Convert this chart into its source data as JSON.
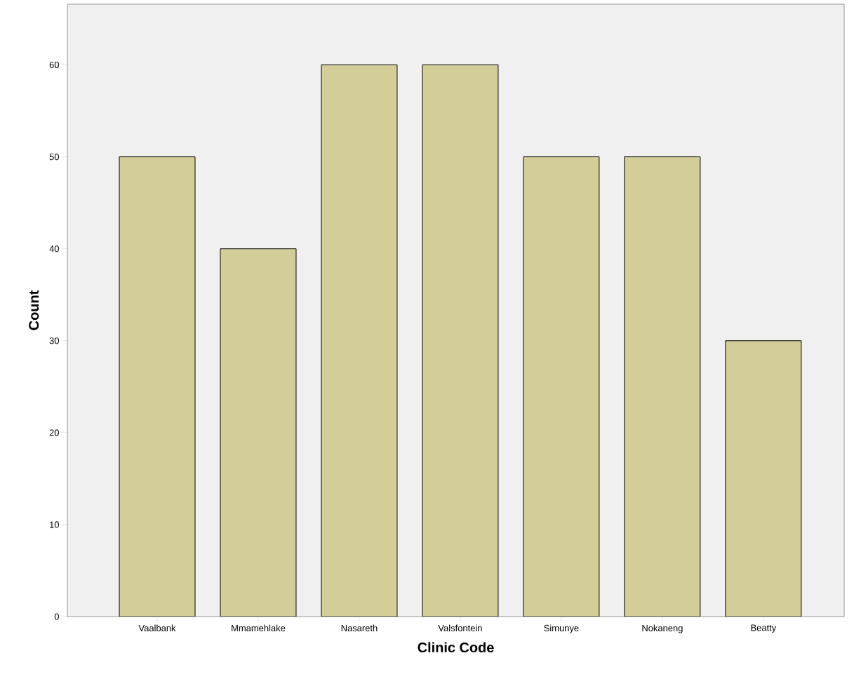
{
  "chart_data": {
    "type": "bar",
    "xlabel": "Clinic Code",
    "ylabel": "Count",
    "categories": [
      "Vaalbank",
      "Mmamehlake",
      "Nasareth",
      "Valsfontein",
      "Simunye",
      "Nokaneng",
      "Beatty"
    ],
    "values": [
      50,
      40,
      60,
      60,
      50,
      50,
      30
    ],
    "color": "#d3cd98",
    "ylim": [
      0,
      66.6
    ],
    "yticks": [
      0,
      10,
      20,
      30,
      40,
      50,
      60
    ]
  }
}
